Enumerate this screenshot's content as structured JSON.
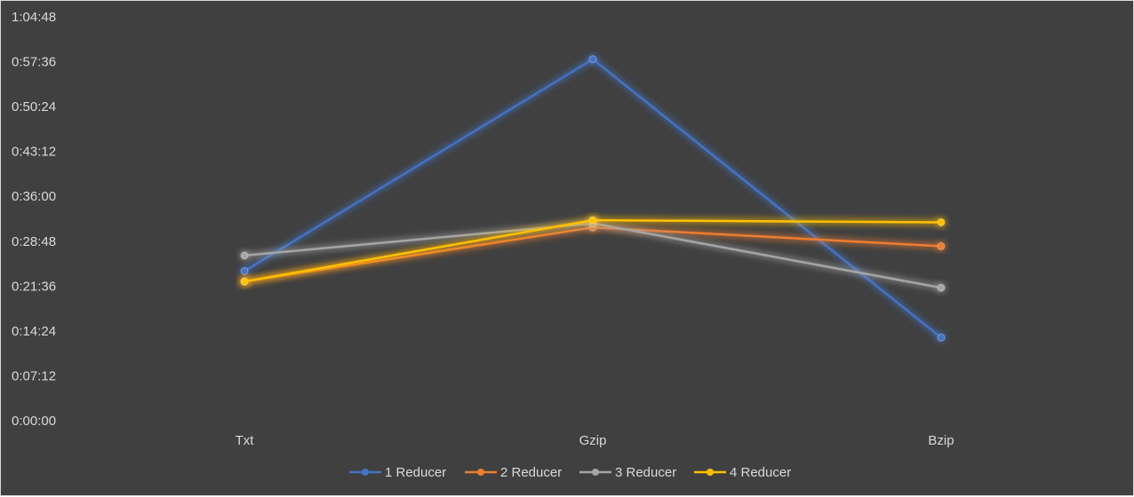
{
  "chart_data": {
    "type": "line",
    "title": "",
    "xlabel": "",
    "ylabel": "",
    "categories": [
      "Txt",
      "Gzip",
      "Bzip"
    ],
    "y_unit": "h:mm:ss",
    "y_ticks": [
      "0:00:00",
      "0:07:12",
      "0:14:24",
      "0:21:36",
      "0:28:48",
      "0:36:00",
      "0:43:12",
      "0:50:24",
      "0:57:36",
      "1:04:48"
    ],
    "ylim": [
      "0:00:00",
      "1:04:48"
    ],
    "grid": false,
    "legend_position": "bottom",
    "series": [
      {
        "name": "1 Reducer",
        "color": "#4472c4",
        "values": [
          "0:24:00",
          "0:58:00",
          "0:13:20"
        ]
      },
      {
        "name": "2 Reducer",
        "color": "#ed7d31",
        "values": [
          "0:22:20",
          "0:31:00",
          "0:28:00"
        ]
      },
      {
        "name": "3 Reducer",
        "color": "#a5a5a5",
        "values": [
          "0:26:30",
          "0:31:40",
          "0:21:20"
        ]
      },
      {
        "name": "4 Reducer",
        "color": "#ffc000",
        "values": [
          "0:22:20",
          "0:32:10",
          "0:31:50"
        ]
      }
    ]
  }
}
